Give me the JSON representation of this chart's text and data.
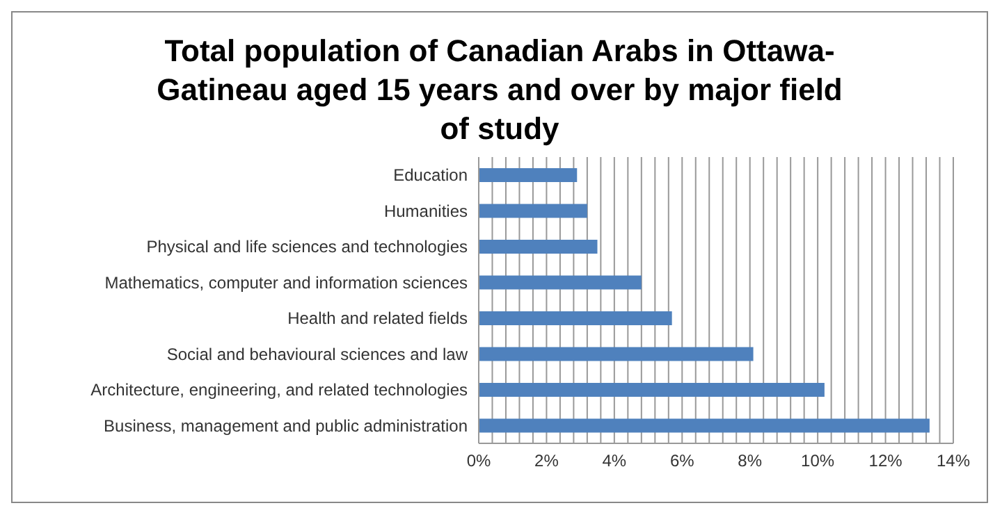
{
  "chart_data": {
    "type": "bar",
    "orientation": "horizontal",
    "title": "Total population of Canadian Arabs in Ottawa-Gatineau aged 15 years and over by major field of study",
    "categories": [
      "Education",
      "Humanities",
      "Physical and life sciences and technologies",
      "Mathematics, computer and information sciences",
      "Health and related fields",
      "Social and behavioural sciences and law",
      "Architecture, engineering, and related technologies",
      "Business, management and public administration"
    ],
    "values": [
      2.9,
      3.2,
      3.5,
      4.8,
      5.7,
      8.1,
      10.2,
      13.3
    ],
    "color": "#4f81bd",
    "xlim": [
      0,
      14
    ],
    "xticks": [
      {
        "value": 0,
        "label": "0%"
      },
      {
        "value": 0.4,
        "label": null
      },
      {
        "value": 0.8,
        "label": null
      },
      {
        "value": 1.2,
        "label": null
      },
      {
        "value": 1.6,
        "label": null
      },
      {
        "value": 2,
        "label": "2%"
      },
      {
        "value": 2.4,
        "label": null
      },
      {
        "value": 2.8,
        "label": null
      },
      {
        "value": 3.2,
        "label": null
      },
      {
        "value": 3.6,
        "label": null
      },
      {
        "value": 4,
        "label": "4%"
      },
      {
        "value": 4.4,
        "label": null
      },
      {
        "value": 4.8,
        "label": null
      },
      {
        "value": 5.2,
        "label": null
      },
      {
        "value": 5.6,
        "label": null
      },
      {
        "value": 6,
        "label": "6%"
      },
      {
        "value": 6.4,
        "label": null
      },
      {
        "value": 6.8,
        "label": null
      },
      {
        "value": 7.2,
        "label": null
      },
      {
        "value": 7.6,
        "label": null
      },
      {
        "value": 8,
        "label": "8%"
      },
      {
        "value": 8.4,
        "label": null
      },
      {
        "value": 8.8,
        "label": null
      },
      {
        "value": 9.2,
        "label": null
      },
      {
        "value": 9.6,
        "label": null
      },
      {
        "value": 10,
        "label": "10%"
      },
      {
        "value": 10.4,
        "label": null
      },
      {
        "value": 10.8,
        "label": null
      },
      {
        "value": 11.2,
        "label": null
      },
      {
        "value": 11.6,
        "label": null
      },
      {
        "value": 12,
        "label": "12%"
      },
      {
        "value": 12.4,
        "label": null
      },
      {
        "value": 12.8,
        "label": null
      },
      {
        "value": 13.2,
        "label": null
      },
      {
        "value": 13.6,
        "label": null
      },
      {
        "value": 14,
        "label": "14%"
      }
    ],
    "grid": "x",
    "legend": false
  }
}
